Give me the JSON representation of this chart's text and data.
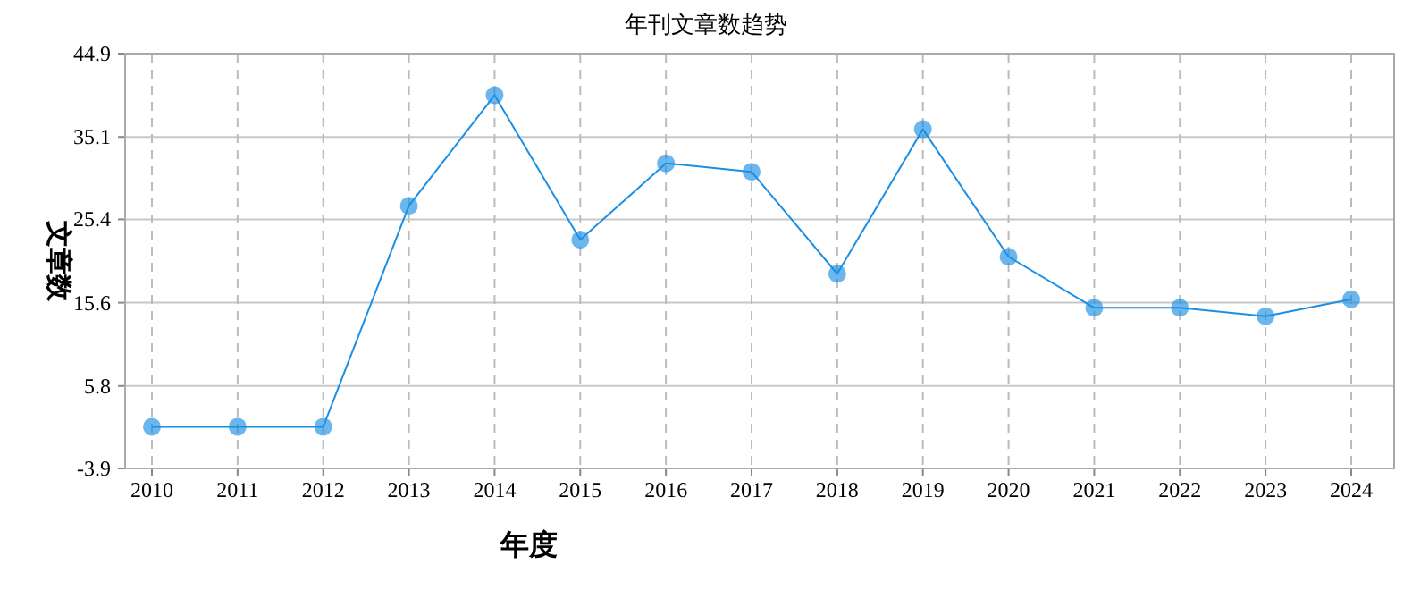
{
  "chart_data": {
    "type": "line",
    "title": "年刊文章数趋势",
    "xlabel": "年度",
    "ylabel": "文章数",
    "categories": [
      "2010",
      "2011",
      "2012",
      "2013",
      "2014",
      "2015",
      "2016",
      "2017",
      "2018",
      "2019",
      "2020",
      "2021",
      "2022",
      "2023",
      "2024"
    ],
    "series": [
      {
        "color": "#1a8fe3",
        "values": [
          1,
          1,
          1,
          27,
          40,
          23,
          32,
          31,
          19,
          36,
          21,
          15,
          15,
          14,
          16
        ]
      }
    ],
    "ylim": [
      -3.9,
      44.9
    ],
    "yticks": [
      -3.9,
      5.8,
      15.6,
      25.4,
      35.1,
      44.9
    ],
    "grid": true,
    "marker": "circle"
  }
}
